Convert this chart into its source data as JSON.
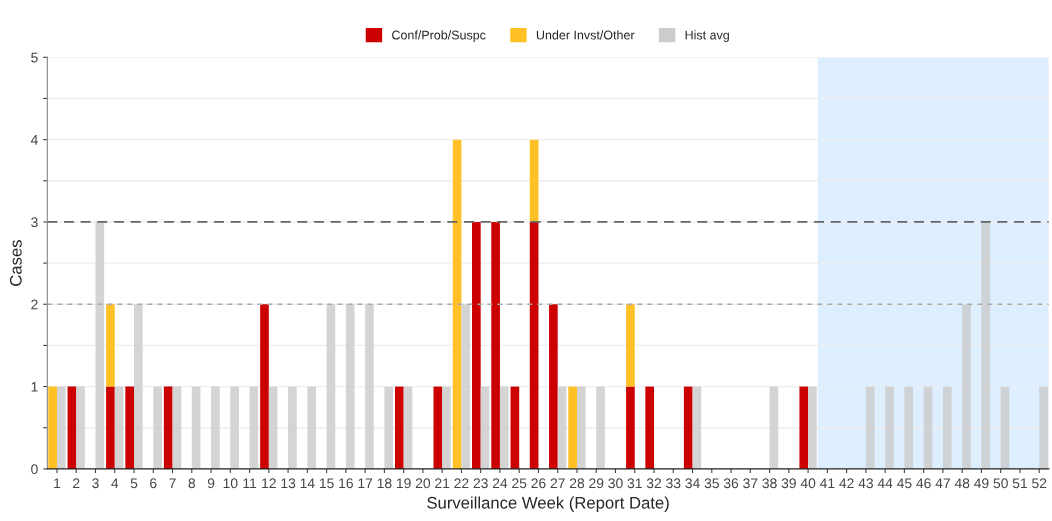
{
  "chart_data": {
    "type": "bar",
    "xlabel": "Surveillance Week (Report Date)",
    "ylabel": "Cases",
    "categories": [
      "1",
      "2",
      "3",
      "4",
      "5",
      "6",
      "7",
      "8",
      "9",
      "10",
      "11",
      "12",
      "13",
      "14",
      "15",
      "16",
      "17",
      "18",
      "19",
      "20",
      "21",
      "22",
      "23",
      "24",
      "25",
      "26",
      "27",
      "28",
      "29",
      "30",
      "31",
      "32",
      "33",
      "34",
      "35",
      "36",
      "37",
      "38",
      "39",
      "40",
      "41",
      "42",
      "43",
      "44",
      "45",
      "46",
      "47",
      "48",
      "49",
      "50",
      "51",
      "52"
    ],
    "series": [
      {
        "name": "Conf/Prob/Suspc",
        "color": "#cc0000",
        "values": [
          0,
          1,
          0,
          1,
          1,
          0,
          1,
          0,
          0,
          0,
          0,
          2,
          0,
          0,
          0,
          0,
          0,
          0,
          1,
          0,
          1,
          0,
          3,
          3,
          1,
          3,
          2,
          0,
          0,
          0,
          1,
          1,
          0,
          1,
          0,
          0,
          0,
          0,
          0,
          1,
          0,
          0,
          0,
          0,
          0,
          0,
          0,
          0,
          0,
          0,
          0,
          0
        ]
      },
      {
        "name": "Under Invst/Other",
        "color": "#ffc125",
        "base": [
          0,
          null,
          null,
          1,
          null,
          null,
          null,
          null,
          null,
          null,
          null,
          null,
          null,
          null,
          null,
          null,
          null,
          null,
          null,
          null,
          null,
          0,
          null,
          null,
          null,
          3,
          null,
          0,
          null,
          null,
          1,
          null,
          null,
          null,
          null,
          null,
          null,
          null,
          null,
          null,
          null,
          null,
          null,
          null,
          null,
          null,
          null,
          null,
          null,
          null,
          null,
          null
        ],
        "values": [
          1,
          null,
          null,
          1,
          null,
          null,
          null,
          null,
          null,
          null,
          null,
          null,
          null,
          null,
          null,
          null,
          null,
          null,
          null,
          null,
          null,
          4,
          null,
          null,
          null,
          1,
          null,
          1,
          null,
          null,
          1,
          null,
          null,
          null,
          null,
          null,
          null,
          null,
          null,
          null,
          null,
          null,
          null,
          null,
          null,
          null,
          null,
          null,
          null,
          null,
          null,
          null
        ]
      },
      {
        "name": "Hist avg",
        "color": "#cccccc",
        "values": [
          1,
          1,
          3,
          1,
          2,
          1,
          1,
          1,
          1,
          1,
          1,
          1,
          1,
          1,
          2,
          2,
          2,
          1,
          1,
          0,
          1,
          2,
          1,
          1,
          0,
          0,
          1,
          1,
          1,
          0,
          0,
          0,
          0,
          1,
          0,
          0,
          0,
          1,
          0,
          1,
          0,
          0,
          1,
          1,
          1,
          1,
          1,
          2,
          3,
          1,
          0,
          1
        ]
      }
    ],
    "ylim": [
      0,
      5
    ],
    "yticks": [
      0,
      {
        "value": 0.5,
        "label": null
      },
      1,
      {
        "value": 1.5,
        "label": null
      },
      2,
      {
        "value": 2.5,
        "label": null
      },
      3,
      {
        "value": 3.5,
        "label": null
      },
      4,
      {
        "value": 4.5,
        "label": null
      },
      5
    ],
    "grid": "y",
    "legend": "top",
    "ref_lines": [
      {
        "axis": "y",
        "value": 3,
        "color": "#666666",
        "line_style": "dashed"
      },
      {
        "axis": "y",
        "value": 2,
        "color": "#aaaaaa",
        "line_style": "dotted"
      }
    ],
    "bands": [
      {
        "axis": "x",
        "from": "41",
        "to": "52",
        "color": "#ddeeff"
      }
    ]
  }
}
